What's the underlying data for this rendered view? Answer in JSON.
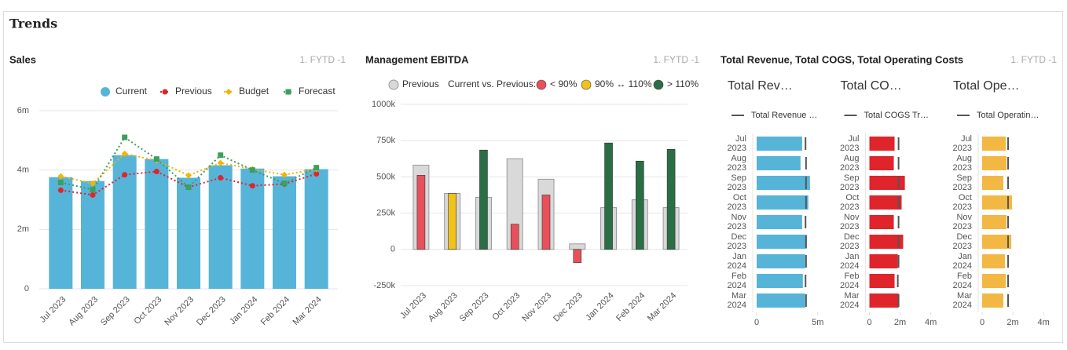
{
  "title": "Trends",
  "chart_data": [
    {
      "type": "combo",
      "title": "Sales",
      "subtitle": "1. FYTD -1",
      "categories": [
        "Jul 2023",
        "Aug 2023",
        "Sep 2023",
        "Oct 2023",
        "Nov 2023",
        "Dec 2023",
        "Jan 2024",
        "Feb 2024",
        "Mar 2024"
      ],
      "ylim": [
        0,
        6
      ],
      "yticks": [
        0,
        {
          "value": 2,
          "label": "2m"
        },
        {
          "value": 4,
          "label": "4m"
        },
        {
          "value": 6,
          "label": "6m"
        }
      ],
      "grid": true,
      "series": [
        {
          "name": "Current",
          "kind": "bar",
          "marker": "circle",
          "color": "#56b4d9",
          "values": [
            3.76,
            3.63,
            4.5,
            4.37,
            3.74,
            4.16,
            4.05,
            3.79,
            4.03
          ]
        },
        {
          "name": "Previous",
          "kind": "line",
          "marker": "circle",
          "color": "#e0242b",
          "values": [
            3.32,
            3.16,
            3.84,
            3.95,
            3.42,
            3.74,
            3.47,
            3.53,
            3.87
          ]
        },
        {
          "name": "Budget",
          "kind": "line",
          "marker": "diamond",
          "color": "#f4b400",
          "values": [
            3.79,
            3.55,
            4.55,
            4.32,
            3.82,
            4.24,
            4.03,
            3.84,
            4.03
          ]
        },
        {
          "name": "Forecast",
          "kind": "line",
          "marker": "square",
          "color": "#3c9e5f",
          "values": [
            3.58,
            3.34,
            5.1,
            4.37,
            3.42,
            4.5,
            4.0,
            3.55,
            4.08
          ]
        }
      ]
    },
    {
      "type": "bar",
      "title": "Management EBITDA",
      "subtitle": "1. FYTD -1",
      "categories": [
        "Jul 2023",
        "Aug 2023",
        "Sep 2023",
        "Oct 2023",
        "Nov 2023",
        "Dec 2023",
        "Jan 2024",
        "Feb 2024",
        "Mar 2024"
      ],
      "ylim": [
        -250,
        1000
      ],
      "yticks": [
        {
          "value": -250,
          "label": "-250k"
        },
        0,
        {
          "value": 250,
          "label": "250k"
        },
        {
          "value": 500,
          "label": "500k"
        },
        {
          "value": 750,
          "label": "750k"
        },
        {
          "value": 1000,
          "label": "1000k"
        }
      ],
      "grid": true,
      "legend_title": "Current vs. Previous:",
      "bands": [
        {
          "label": "< 90%",
          "color": "#e8505b"
        },
        {
          "label": "90% ↔ 110%",
          "color": "#f1c21b"
        },
        {
          "label": "> 110%",
          "color": "#2a6e45"
        }
      ],
      "series": [
        {
          "name": "Previous",
          "color": "#d9d9d9",
          "values": [
            581,
            386,
            359,
            625,
            484,
            38,
            288,
            342,
            288
          ]
        },
        {
          "colors": [
            "#e8505b",
            "#f1c21b",
            "#2a6e45",
            "#e8505b",
            "#e8505b",
            "#e8505b",
            "#2a6e45",
            "#2a6e45",
            "#2a6e45"
          ],
          "values": [
            511,
            386,
            685,
            174,
            375,
            -92,
            734,
            609,
            690
          ]
        }
      ]
    },
    {
      "type": "hbar",
      "title": "Total Revenue, Total COGS, Total Operating Costs",
      "subtitle": "1. FYTD -1",
      "categories": [
        "Jul 2023",
        "Aug 2023",
        "Sep 2023",
        "Oct 2023",
        "Nov 2023",
        "Dec 2023",
        "Jan 2024",
        "Feb 2024",
        "Mar 2024"
      ],
      "panels": [
        {
          "title": "Total Rev…",
          "color": "#56b4d9",
          "values": [
            3.72,
            3.59,
            4.36,
            4.23,
            3.72,
            4.1,
            3.97,
            3.78,
            3.97
          ],
          "target": {
            "name": "Total Revenue …",
            "color": "#555555",
            "values": [
              4.0,
              4.04,
              4.04,
              4.04,
              4.0,
              4.04,
              4.04,
              4.0,
              4.04
            ]
          },
          "xlim": [
            0,
            5.4
          ],
          "xticks": [
            0,
            {
              "value": 5,
              "label": "5m"
            }
          ]
        },
        {
          "title": "Total CO…",
          "color": "#e0242b",
          "values": [
            1.64,
            1.59,
            2.31,
            2.1,
            1.59,
            2.2,
            1.85,
            1.64,
            1.9
          ],
          "target": {
            "name": "Total COGS Tr…",
            "color": "#555555",
            "values": [
              1.9,
              1.9,
              1.9,
              1.9,
              1.9,
              1.9,
              1.9,
              1.85,
              1.9
            ]
          },
          "xlim": [
            0,
            4.3
          ],
          "xticks": [
            0,
            {
              "value": 2,
              "label": "2m"
            },
            {
              "value": 4,
              "label": "4m"
            }
          ]
        },
        {
          "title": "Total Ope…",
          "color": "#f2b843",
          "values": [
            1.54,
            1.59,
            1.38,
            1.95,
            1.59,
            1.9,
            1.49,
            1.54,
            1.38
          ],
          "target": {
            "name": "Total Operatin…",
            "color": "#555555",
            "values": [
              1.69,
              1.69,
              1.69,
              1.69,
              1.69,
              1.69,
              1.69,
              1.69,
              1.69
            ]
          },
          "xlim": [
            0,
            4.3
          ],
          "xticks": [
            0,
            {
              "value": 2,
              "label": "2m"
            },
            {
              "value": 4,
              "label": "4m"
            }
          ]
        }
      ]
    }
  ]
}
